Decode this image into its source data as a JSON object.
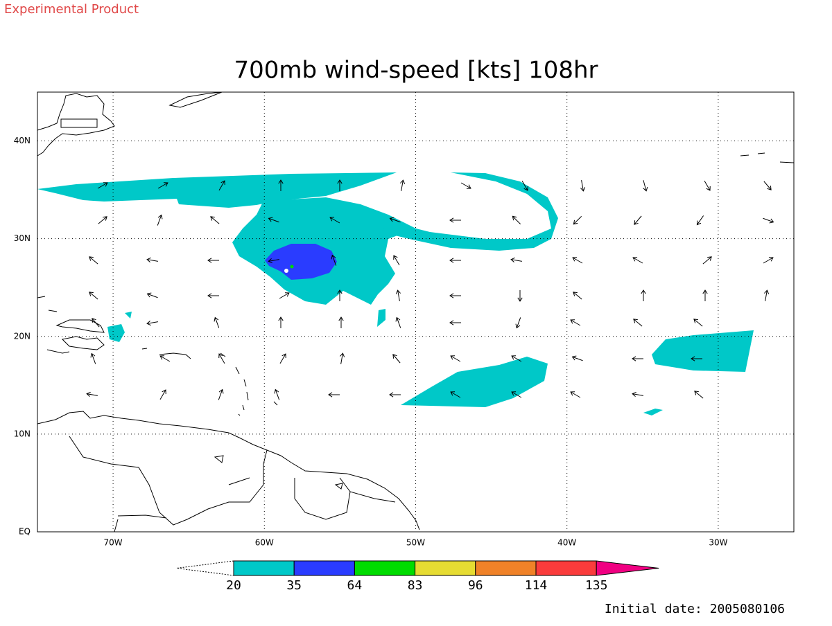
{
  "header": {
    "label": "Experimental Product"
  },
  "map": {
    "title": "700mb wind-speed [kts] 108hr",
    "lon_range": [
      -75,
      -25
    ],
    "lat_range": [
      0,
      45
    ],
    "lat_grid": [
      {
        "value": 40,
        "label": "40N"
      },
      {
        "value": 30,
        "label": "30N"
      },
      {
        "value": 20,
        "label": "20N"
      },
      {
        "value": 10,
        "label": "10N"
      },
      {
        "value": 0,
        "label": "EQ"
      }
    ],
    "lon_grid": [
      {
        "value": -70,
        "label": "70W"
      },
      {
        "value": -60,
        "label": "60W"
      },
      {
        "value": -50,
        "label": "50W"
      },
      {
        "value": -40,
        "label": "40W"
      },
      {
        "value": -30,
        "label": "30W"
      }
    ]
  },
  "colorbar": {
    "levels": [
      20,
      35,
      64,
      83,
      96,
      114,
      135
    ],
    "colors": [
      "#00c8c8",
      "#2a3cff",
      "#00dc00",
      "#e6dc32",
      "#f08228",
      "#fa3c3c",
      "#f00082"
    ]
  },
  "footer": {
    "initial_date": "Initial date: 2005080106"
  }
}
